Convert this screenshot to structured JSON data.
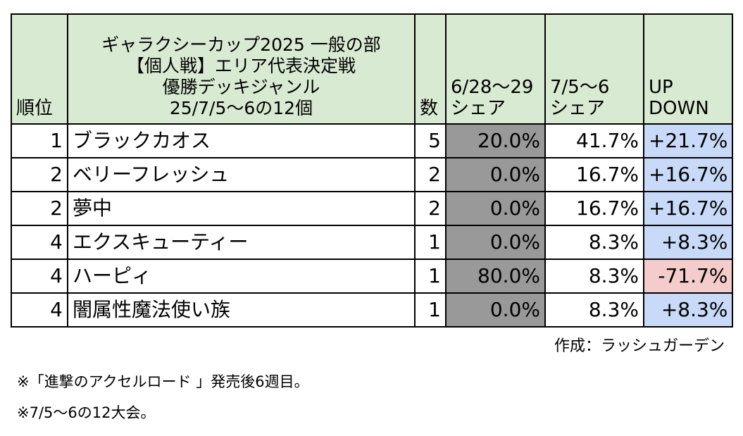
{
  "table": {
    "header": {
      "rank": "順位",
      "title_lines": [
        "ギャラクシーカップ2025 一般の部",
        "【個人戦】エリア代表決定戦",
        "優勝デッキジャンル",
        "25/7/5〜6の12個"
      ],
      "count": "数",
      "share_prev_lines": [
        "6/28〜29",
        "シェア"
      ],
      "share_cur_lines": [
        "7/5〜6",
        "シェア"
      ],
      "diff_lines": [
        "UP",
        "DOWN"
      ]
    },
    "rows": [
      {
        "rank": "1",
        "name": "ブラックカオス",
        "count": "5",
        "share_prev": "20.0%",
        "share_cur": "41.7%",
        "diff": "+21.7%",
        "trend": "up"
      },
      {
        "rank": "2",
        "name": "ベリーフレッシュ",
        "count": "2",
        "share_prev": "0.0%",
        "share_cur": "16.7%",
        "diff": "+16.7%",
        "trend": "up"
      },
      {
        "rank": "2",
        "name": "夢中",
        "count": "2",
        "share_prev": "0.0%",
        "share_cur": "16.7%",
        "diff": "+16.7%",
        "trend": "up"
      },
      {
        "rank": "4",
        "name": "エクスキューティー",
        "count": "1",
        "share_prev": "0.0%",
        "share_cur": "8.3%",
        "diff": "+8.3%",
        "trend": "up"
      },
      {
        "rank": "4",
        "name": "ハーピィ",
        "count": "1",
        "share_prev": "80.0%",
        "share_cur": "8.3%",
        "diff": "-71.7%",
        "trend": "down"
      },
      {
        "rank": "4",
        "name": "闇属性魔法使い族",
        "count": "1",
        "share_prev": "0.0%",
        "share_cur": "8.3%",
        "diff": "+8.3%",
        "trend": "up"
      }
    ]
  },
  "credit": "作成：ラッシュガーデン",
  "notes": [
    "※「進撃のアクセルロード 」発売後6週目。",
    "※7/5〜6の12大会。"
  ],
  "colors": {
    "header_bg": "#d9ead3",
    "prev_share_bg": "#999999",
    "up_bg": "#c9daf8",
    "down_bg": "#f4cccc"
  }
}
